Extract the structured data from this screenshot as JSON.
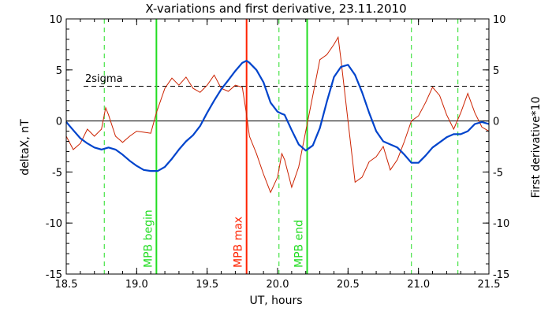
{
  "chart_data": {
    "type": "line",
    "title": "X-variations and first derivative, 23.11.2010",
    "xlabel": "UT, hours",
    "ylabel_left": "deltaX, nT",
    "ylabel_right": "First derivative*10",
    "xlim": [
      18.5,
      21.5
    ],
    "ylim": [
      -15,
      10
    ],
    "x_ticks": [
      "18.5",
      "19.0",
      "19.5",
      "20.0",
      "20.5",
      "21.0",
      "21.5"
    ],
    "y_ticks": [
      "10",
      "5",
      "0",
      "-5",
      "-10",
      "-15"
    ],
    "colors": {
      "deltaX": "#0044cc",
      "derivative": "#cc2200",
      "mpb_boundary": "#22dd22",
      "mpb_max": "#ff2200",
      "dashed_green": "#22dd22"
    },
    "sigma_line": {
      "label": "2sigma",
      "y": 3.4
    },
    "zero_line": {
      "y": 0
    },
    "vertical_markers": [
      {
        "label": "MPB begin",
        "x": 19.14,
        "style": "solid",
        "color": "#22dd22"
      },
      {
        "label": "MPB max",
        "x": 19.78,
        "style": "solid",
        "color": "#ff2200"
      },
      {
        "label": "MPB end",
        "x": 20.21,
        "style": "solid",
        "color": "#22dd22"
      }
    ],
    "dashed_markers": [
      {
        "x": 18.77
      },
      {
        "x": 20.01
      },
      {
        "x": 20.95
      },
      {
        "x": 21.28
      }
    ],
    "series": [
      {
        "name": "deltaX",
        "axis": "left",
        "x": [
          18.5,
          18.55,
          18.6,
          18.65,
          18.7,
          18.75,
          18.8,
          18.85,
          18.9,
          18.95,
          19.0,
          19.05,
          19.1,
          19.15,
          19.2,
          19.25,
          19.3,
          19.35,
          19.4,
          19.45,
          19.5,
          19.55,
          19.6,
          19.65,
          19.7,
          19.75,
          19.78,
          19.8,
          19.85,
          19.9,
          19.95,
          20.0,
          20.03,
          20.05,
          20.1,
          20.15,
          20.2,
          20.25,
          20.3,
          20.35,
          20.4,
          20.45,
          20.5,
          20.55,
          20.6,
          20.65,
          20.7,
          20.75,
          20.8,
          20.85,
          20.9,
          20.95,
          21.0,
          21.05,
          21.1,
          21.15,
          21.2,
          21.25,
          21.3,
          21.35,
          21.4,
          21.45,
          21.5
        ],
        "y": [
          -0.1,
          -0.9,
          -1.7,
          -2.2,
          -2.6,
          -2.8,
          -2.6,
          -2.8,
          -3.3,
          -3.9,
          -4.4,
          -4.8,
          -4.9,
          -4.9,
          -4.5,
          -3.7,
          -2.8,
          -2.0,
          -1.4,
          -0.5,
          0.8,
          2.0,
          3.1,
          4.0,
          4.9,
          5.7,
          5.9,
          5.7,
          5.0,
          3.8,
          1.8,
          0.9,
          0.7,
          0.6,
          -0.9,
          -2.3,
          -2.9,
          -2.4,
          -0.7,
          1.9,
          4.3,
          5.3,
          5.5,
          4.5,
          2.8,
          0.8,
          -1.0,
          -2.0,
          -2.3,
          -2.6,
          -3.3,
          -4.1,
          -4.1,
          -3.4,
          -2.6,
          -2.1,
          -1.6,
          -1.3,
          -1.3,
          -1.0,
          -0.3,
          -0.1,
          -0.3
        ]
      },
      {
        "name": "First derivative*10",
        "axis": "left",
        "x": [
          18.5,
          18.55,
          18.6,
          18.65,
          18.7,
          18.75,
          18.78,
          18.8,
          18.85,
          18.9,
          18.95,
          19.0,
          19.05,
          19.1,
          19.14,
          19.2,
          19.25,
          19.3,
          19.35,
          19.4,
          19.45,
          19.5,
          19.55,
          19.6,
          19.65,
          19.7,
          19.75,
          19.78,
          19.8,
          19.85,
          19.9,
          19.95,
          20.0,
          20.03,
          20.05,
          20.1,
          20.15,
          20.2,
          20.25,
          20.3,
          20.35,
          20.4,
          20.43,
          20.45,
          20.5,
          20.55,
          20.6,
          20.65,
          20.7,
          20.75,
          20.8,
          20.85,
          20.9,
          20.95,
          21.0,
          21.05,
          21.1,
          21.15,
          21.2,
          21.25,
          21.3,
          21.35,
          21.4,
          21.45,
          21.5
        ],
        "y": [
          -1.5,
          -2.8,
          -2.2,
          -0.8,
          -1.5,
          -0.8,
          1.3,
          0.6,
          -1.5,
          -2.1,
          -1.5,
          -1.0,
          -1.1,
          -1.2,
          0.8,
          3.2,
          4.2,
          3.5,
          4.3,
          3.2,
          2.8,
          3.5,
          4.5,
          3.2,
          2.9,
          3.5,
          3.3,
          0.6,
          -1.5,
          -3.2,
          -5.2,
          -7.0,
          -5.5,
          -3.2,
          -3.8,
          -6.5,
          -4.5,
          -1.0,
          2.5,
          6.0,
          6.5,
          7.5,
          8.2,
          6.0,
          0.0,
          -6.0,
          -5.5,
          -4.0,
          -3.5,
          -2.5,
          -4.8,
          -3.8,
          -2.0,
          0.0,
          0.5,
          1.8,
          3.3,
          2.5,
          0.6,
          -0.8,
          0.8,
          2.7,
          0.8,
          -0.6,
          -1.0
        ]
      }
    ]
  }
}
